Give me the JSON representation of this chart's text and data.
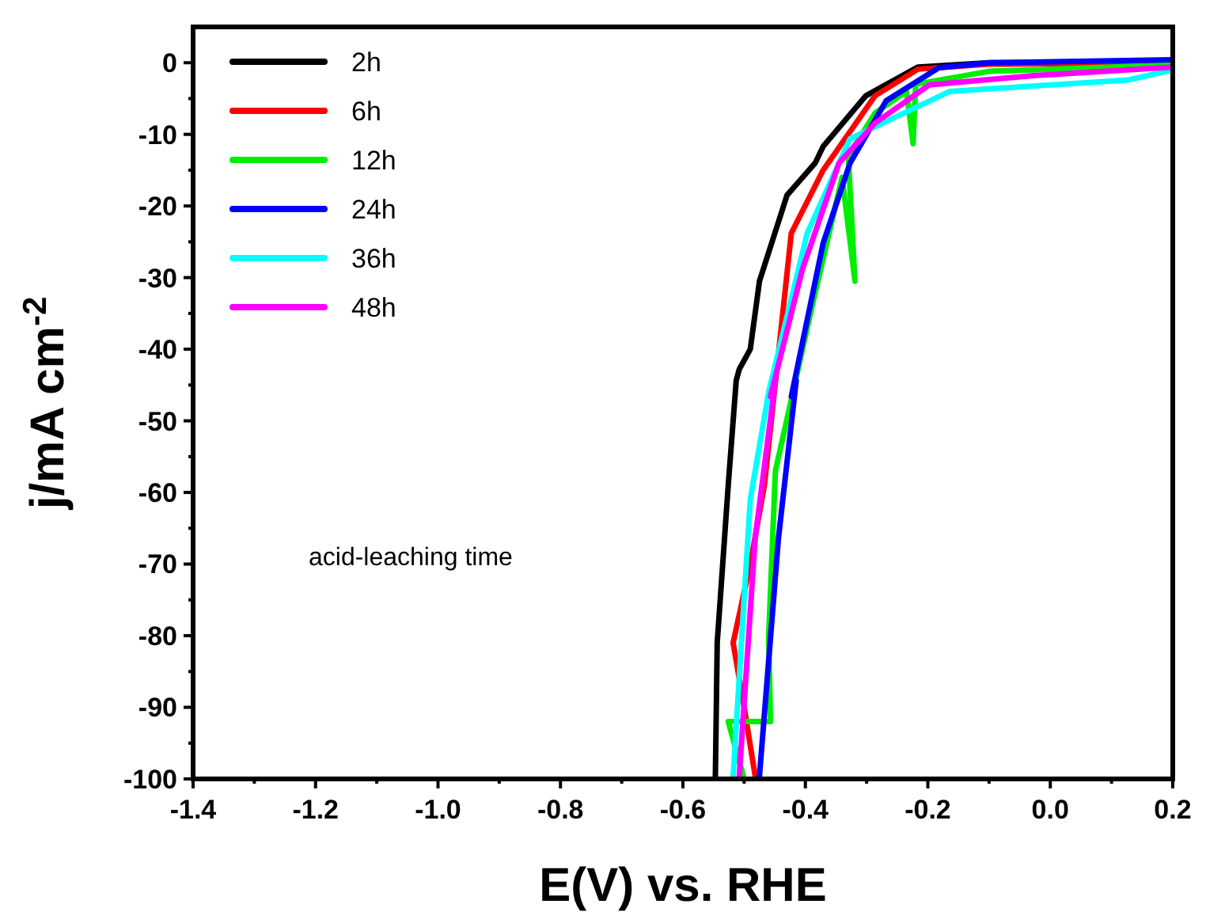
{
  "chart_data": {
    "type": "line",
    "xlabel": "E(V) vs. RHE",
    "ylabel": "j/mA cm$^{-2}$",
    "annotations": [
      "acid-leaching time"
    ],
    "legend": "top left",
    "grid": false,
    "line_style": "solid",
    "marker": "none",
    "xlim": [
      -1.4,
      0.2
    ],
    "xticks": [
      -1.4,
      {
        "value": -1.3,
        "label": null
      },
      "-1.2",
      {
        "value": -1.1,
        "label": null
      },
      {
        "value": -1.0,
        "label": "-1.0"
      },
      {
        "value": -0.9,
        "label": null
      },
      -0.8,
      {
        "value": -0.7,
        "label": null
      },
      -0.6,
      {
        "value": -0.5,
        "label": null
      },
      -0.4,
      {
        "value": -0.3,
        "label": null
      },
      -0.2,
      {
        "value": -0.1,
        "label": null
      },
      {
        "value": 0,
        "label": "0.0"
      },
      {
        "value": 0.1,
        "label": null
      },
      0.2
    ],
    "ylim": [
      -100,
      5
    ],
    "yticks": [
      -100,
      {
        "value": -95,
        "label": null
      },
      -90,
      {
        "value": -85,
        "label": null
      },
      -80,
      {
        "value": -75,
        "label": null
      },
      -70,
      {
        "value": -65,
        "label": null
      },
      -60,
      {
        "value": -55,
        "label": null
      },
      -50,
      {
        "value": -45,
        "label": null
      },
      -40,
      {
        "value": -35,
        "label": null
      },
      -30,
      {
        "value": -25,
        "label": null
      },
      -20,
      {
        "value": -15,
        "label": null
      },
      -10,
      {
        "value": -5,
        "label": null
      },
      0
    ],
    "series": [
      {
        "name": "2h",
        "color": "#000000",
        "x": [
          -0.547,
          -0.544,
          -0.526,
          -0.513,
          -0.508,
          -0.49,
          -0.475,
          -0.43,
          -0.384,
          -0.371,
          -0.301,
          -0.216,
          -0.1,
          0.2
        ],
        "values": [
          -99.6,
          -81,
          -59,
          -44.4,
          -42.8,
          -40,
          -30.5,
          -18.5,
          -14,
          -11.7,
          -4.6,
          -0.6,
          0,
          0
        ]
      },
      {
        "name": "6h",
        "color": "#ff0000",
        "x": [
          -0.482,
          -0.5,
          -0.518,
          -0.49,
          -0.467,
          -0.423,
          -0.371,
          -0.286,
          -0.216,
          -0.1,
          0.2
        ],
        "values": [
          -99.6,
          -90,
          -81,
          -70,
          -59,
          -23.8,
          -15,
          -4.6,
          -0.9,
          -0.2,
          0
        ]
      },
      {
        "name": "12h",
        "color": "#00ee00",
        "x": [
          -0.5,
          -0.526,
          -0.457,
          -0.46,
          -0.449,
          -0.389,
          -0.34,
          -0.319,
          -0.33,
          -0.286,
          -0.235,
          -0.224,
          -0.22,
          -0.1,
          0.2
        ],
        "values": [
          -100,
          -92,
          -92,
          -80,
          -57,
          -34,
          -16,
          -30.5,
          -13,
          -7,
          -4,
          -11.3,
          -3,
          -1.2,
          -0.3
        ]
      },
      {
        "name": "24h",
        "color": "#0000ff",
        "x": [
          -0.475,
          -0.444,
          -0.415,
          -0.423,
          -0.371,
          -0.327,
          -0.268,
          -0.182,
          -0.1,
          0.2
        ],
        "values": [
          -99.6,
          -66.4,
          -44.4,
          -46.6,
          -25.2,
          -14,
          -5.3,
          -0.7,
          0,
          0.4
        ]
      },
      {
        "name": "36h",
        "color": "#00ffff",
        "x": [
          -0.518,
          -0.49,
          -0.46,
          -0.397,
          -0.327,
          -0.164,
          0.128,
          0.2
        ],
        "values": [
          -99.6,
          -61,
          -46,
          -23.8,
          -10.6,
          -4,
          -2.4,
          -1
        ]
      },
      {
        "name": "48h",
        "color": "#ff00ff",
        "x": [
          -0.508,
          -0.482,
          -0.449,
          -0.457,
          -0.405,
          -0.345,
          -0.286,
          -0.198,
          -0.027,
          0.2
        ],
        "values": [
          -99.6,
          -66.4,
          -44.4,
          -46.6,
          -28.9,
          -14,
          -8.4,
          -3.1,
          -1.8,
          -0.6
        ]
      }
    ]
  }
}
